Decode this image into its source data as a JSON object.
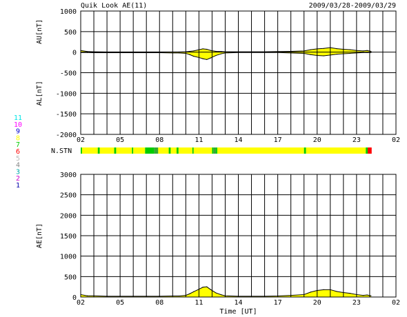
{
  "header": {
    "title": "Quik Look AE(11)",
    "date_range": "2009/03/28-2009/03/29"
  },
  "colors": {
    "fill_upper": "#ffff00",
    "fill_lower": "#ffff00",
    "station_high": "#ffff00",
    "station_mid": "#00cc00",
    "station_low": "#33aa33",
    "station_bad": "#ff0000",
    "grid": "#000000"
  },
  "station_legend": [
    {
      "label": "11",
      "color": "#00e5e5"
    },
    {
      "label": "10",
      "color": "#ff00ff"
    },
    {
      "label": "9",
      "color": "#0000cc"
    },
    {
      "label": "8",
      "color": "#ffff00"
    },
    {
      "label": "7",
      "color": "#00cc00"
    },
    {
      "label": "6",
      "color": "#ff0000"
    },
    {
      "label": "5",
      "color": "#bbbbbb"
    },
    {
      "label": "4",
      "color": "#888888"
    },
    {
      "label": "3",
      "color": "#00aaaa"
    },
    {
      "label": "2",
      "color": "#cc00cc"
    },
    {
      "label": "1",
      "color": "#0000aa"
    }
  ],
  "chart_data": [
    {
      "type": "area",
      "panel": "AU/AL",
      "xlabel": "",
      "ylabel_upper": "AU[nT]",
      "ylabel_lower": "AL[nT]",
      "ylim": [
        -2000,
        1000
      ],
      "y_ticks": [
        "1000",
        "500",
        "0",
        "-500",
        "-1000",
        "-1500",
        "-2000"
      ],
      "xlim_hours": [
        2,
        26
      ],
      "x_ticks": [
        "02",
        "05",
        "08",
        "11",
        "14",
        "17",
        "20",
        "23",
        "02"
      ],
      "grid": true,
      "series": [
        {
          "name": "AU",
          "x": [
            2.0,
            2.5,
            3.0,
            4.0,
            5.0,
            6.0,
            7.0,
            8.0,
            9.0,
            9.5,
            10.0,
            10.3,
            10.6,
            11.0,
            11.3,
            11.6,
            11.9,
            12.3,
            12.7,
            13.0,
            14.0,
            15.0,
            16.0,
            17.0,
            18.0,
            19.0,
            19.5,
            20.0,
            20.5,
            21.0,
            21.5,
            22.0,
            22.5,
            23.0,
            23.5,
            23.8,
            24.1
          ],
          "values": [
            40,
            15,
            10,
            5,
            5,
            5,
            5,
            5,
            5,
            5,
            10,
            20,
            30,
            60,
            80,
            70,
            40,
            20,
            15,
            10,
            10,
            10,
            10,
            15,
            20,
            30,
            60,
            80,
            90,
            110,
            85,
            70,
            60,
            40,
            30,
            40,
            20
          ]
        },
        {
          "name": "AL",
          "x": [
            2.0,
            2.5,
            3.0,
            4.0,
            5.0,
            6.0,
            7.0,
            8.0,
            9.0,
            9.5,
            10.0,
            10.3,
            10.6,
            11.0,
            11.3,
            11.6,
            11.9,
            12.3,
            12.7,
            13.0,
            14.0,
            15.0,
            16.0,
            17.0,
            18.0,
            19.0,
            19.5,
            20.0,
            20.5,
            21.0,
            21.5,
            22.0,
            22.5,
            23.0,
            23.5,
            23.8,
            24.1
          ],
          "values": [
            -10,
            -10,
            -15,
            -15,
            -15,
            -15,
            -15,
            -15,
            -20,
            -20,
            -30,
            -60,
            -100,
            -130,
            -160,
            -180,
            -140,
            -80,
            -40,
            -20,
            -10,
            -10,
            -10,
            -10,
            -20,
            -30,
            -60,
            -80,
            -90,
            -70,
            -50,
            -40,
            -30,
            -20,
            -10,
            -10,
            -10
          ]
        }
      ]
    },
    {
      "type": "heatmap",
      "panel": "station-coverage",
      "label": "N.STN",
      "xlim_hours": [
        2,
        26
      ],
      "segments": [
        {
          "start": 2.0,
          "end": 2.1,
          "level": "mid"
        },
        {
          "start": 2.1,
          "end": 3.3,
          "level": "high"
        },
        {
          "start": 3.3,
          "end": 3.45,
          "level": "mid"
        },
        {
          "start": 3.45,
          "end": 4.55,
          "level": "high"
        },
        {
          "start": 4.55,
          "end": 4.7,
          "level": "mid"
        },
        {
          "start": 4.7,
          "end": 5.9,
          "level": "high"
        },
        {
          "start": 5.9,
          "end": 6.0,
          "level": "mid"
        },
        {
          "start": 6.0,
          "end": 6.9,
          "level": "high"
        },
        {
          "start": 6.9,
          "end": 7.6,
          "level": "mid"
        },
        {
          "start": 7.6,
          "end": 7.9,
          "level": "low"
        },
        {
          "start": 7.9,
          "end": 8.7,
          "level": "high"
        },
        {
          "start": 8.7,
          "end": 8.85,
          "level": "mid"
        },
        {
          "start": 8.85,
          "end": 9.3,
          "level": "high"
        },
        {
          "start": 9.3,
          "end": 9.45,
          "level": "mid"
        },
        {
          "start": 9.45,
          "end": 10.5,
          "level": "high"
        },
        {
          "start": 10.5,
          "end": 10.6,
          "level": "mid"
        },
        {
          "start": 10.6,
          "end": 12.0,
          "level": "high"
        },
        {
          "start": 12.0,
          "end": 12.1,
          "level": "mid"
        },
        {
          "start": 12.1,
          "end": 12.3,
          "level": "low"
        },
        {
          "start": 12.3,
          "end": 12.4,
          "level": "mid"
        },
        {
          "start": 12.4,
          "end": 19.0,
          "level": "high"
        },
        {
          "start": 19.0,
          "end": 19.15,
          "level": "mid"
        },
        {
          "start": 19.15,
          "end": 23.7,
          "level": "high"
        },
        {
          "start": 23.7,
          "end": 23.85,
          "level": "mid"
        },
        {
          "start": 23.85,
          "end": 24.15,
          "level": "bad"
        }
      ]
    },
    {
      "type": "area",
      "panel": "AE",
      "xlabel": "Time [UT]",
      "ylabel": "AE[nT]",
      "ylim": [
        0,
        3000
      ],
      "y_ticks": [
        "3000",
        "2500",
        "2000",
        "1500",
        "1000",
        "500",
        "0"
      ],
      "xlim_hours": [
        2,
        26
      ],
      "x_ticks": [
        "02",
        "05",
        "08",
        "11",
        "14",
        "17",
        "20",
        "23",
        "02"
      ],
      "grid": true,
      "series": [
        {
          "name": "AE",
          "x": [
            2.0,
            2.5,
            3.0,
            4.0,
            5.0,
            6.0,
            7.0,
            8.0,
            9.0,
            9.5,
            10.0,
            10.3,
            10.6,
            11.0,
            11.3,
            11.6,
            11.9,
            12.3,
            12.7,
            13.0,
            14.0,
            15.0,
            16.0,
            17.0,
            18.0,
            19.0,
            19.5,
            20.0,
            20.5,
            21.0,
            21.5,
            22.0,
            22.5,
            23.0,
            23.5,
            23.8,
            24.1
          ],
          "values": [
            60,
            30,
            30,
            20,
            20,
            20,
            20,
            20,
            25,
            25,
            40,
            80,
            130,
            190,
            240,
            250,
            180,
            100,
            55,
            30,
            20,
            20,
            20,
            25,
            40,
            60,
            120,
            160,
            180,
            180,
            135,
            110,
            90,
            60,
            40,
            50,
            30
          ]
        }
      ]
    }
  ]
}
